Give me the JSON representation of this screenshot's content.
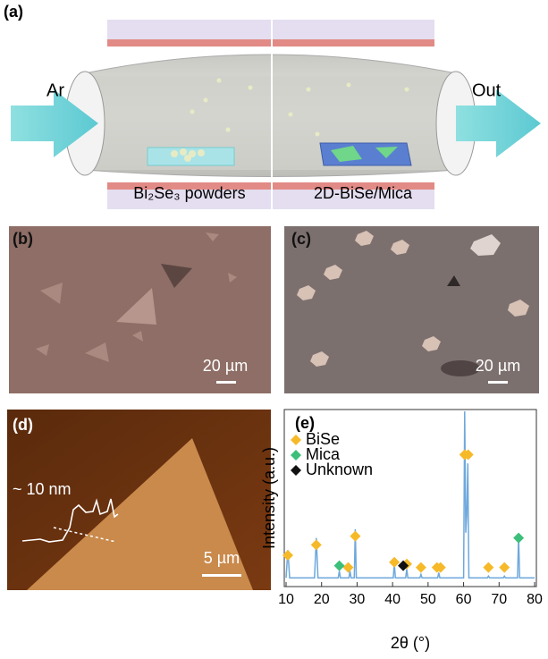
{
  "panel_a": {
    "label": "(a)",
    "inlet_gas": "Ar",
    "outlet": "Out",
    "left_caption": "Bi₂Se₃ powders",
    "right_caption": "2D-BiSe/Mica"
  },
  "panel_b": {
    "label": "(b)",
    "scale_bar": "20 µm"
  },
  "panel_c": {
    "label": "(c)",
    "scale_bar": "20 µm"
  },
  "panel_d": {
    "label": "(d)",
    "height_annotation": "~ 10 nm",
    "scale_bar": "5 µm"
  },
  "chart_data": {
    "type": "line",
    "panel_label": "(e)",
    "x_label": "2θ (°)",
    "y_label": "Intensity (a.u.)",
    "xlim": [
      10,
      80
    ],
    "xticks": [
      10,
      20,
      30,
      40,
      50,
      60,
      70,
      80
    ],
    "ylim": [
      0,
      100
    ],
    "pattern_color": "#6fa8dc",
    "pattern_x": [
      10,
      10.5,
      11,
      18,
      18.5,
      19,
      24.7,
      25,
      25.3,
      27.7,
      28,
      28.3,
      29.2,
      29.5,
      29.8,
      40.2,
      40.5,
      40.8,
      43.7,
      44,
      44.3,
      47.7,
      48,
      48.3,
      52.7,
      53,
      53.3,
      60,
      60.3,
      60.6,
      60.9,
      61.2,
      61.5,
      66.7,
      67,
      67.3,
      71.2,
      71.5,
      71.8,
      75.2,
      75.5,
      75.8,
      80
    ],
    "pattern_values": [
      4,
      20,
      4,
      4,
      27,
      4,
      4,
      8,
      4,
      4,
      8,
      4,
      4,
      32,
      4,
      4,
      12,
      4,
      4,
      9,
      4,
      4,
      6,
      4,
      4,
      7,
      4,
      4,
      100,
      30,
      40,
      70,
      4,
      4,
      5,
      4,
      4,
      5,
      4,
      4,
      28,
      4,
      4
    ],
    "series": [
      {
        "name": "BiSe",
        "color": "#f6b928",
        "x": [
          10.5,
          18.5,
          27.5,
          29.5,
          40.5,
          44,
          48,
          52.5,
          53.5,
          60.3,
          61.3,
          67,
          71.5
        ],
        "values": [
          17,
          23,
          10,
          28,
          13,
          12,
          10,
          10,
          10,
          75,
          75,
          10,
          10
        ]
      },
      {
        "name": "Mica",
        "color": "#3cbf7a",
        "x": [
          25,
          75.5
        ],
        "values": [
          11,
          27
        ]
      },
      {
        "name": "Unknown",
        "color": "#111111",
        "x": [
          43
        ],
        "values": [
          11
        ]
      }
    ]
  }
}
